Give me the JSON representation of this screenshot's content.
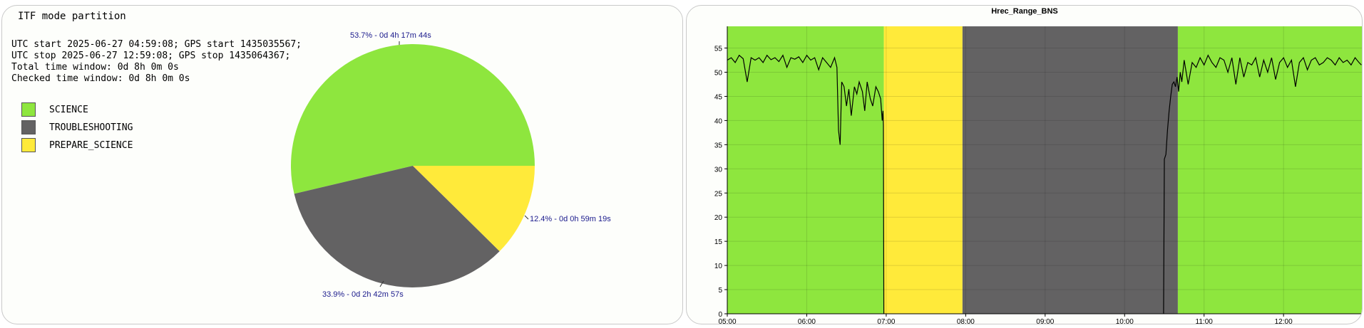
{
  "pie_panel": {
    "title": "ITF mode partition",
    "info_lines": [
      "UTC start 2025-06-27 04:59:08; GPS start 1435035567;",
      "UTC stop 2025-06-27 12:59:08; GPS stop 1435064367;",
      "Total time window: 0d 8h 0m 0s",
      "Checked time window: 0d 8h 0m 0s"
    ]
  },
  "chart_data": [
    {
      "type": "pie",
      "title": "ITF mode partition",
      "legend_placement": "left",
      "slices": [
        {
          "name": "SCIENCE",
          "value": 53.7,
          "label": "53.7% - 0d 4h 17m 44s",
          "color": "#8ee63e"
        },
        {
          "name": "TROUBLESHOOTING",
          "value": 33.9,
          "label": "33.9% - 0d 2h 42m 57s",
          "color": "#636263"
        },
        {
          "name": "PREPARE_SCIENCE",
          "value": 12.4,
          "label": "12.4% - 0d 0h 59m 19s",
          "color": "#ffea3a"
        }
      ]
    },
    {
      "type": "line",
      "title": "Hrec_Range_BNS",
      "xlabel": "",
      "ylabel": "",
      "x_unit": "hour (UTC)",
      "xlim": [
        5.0,
        12.9856
      ],
      "ylim": [
        0,
        59.5
      ],
      "x_tick_values": [
        5,
        6,
        7,
        8,
        9,
        10,
        11,
        12
      ],
      "x_tick_labels": [
        "05:00",
        "06:00",
        "07:00",
        "08:00",
        "09:00",
        "10:00",
        "11:00",
        "12:00"
      ],
      "y_ticks": [
        0,
        5,
        10,
        15,
        20,
        25,
        30,
        35,
        40,
        45,
        50,
        55
      ],
      "grid": true,
      "background_bands": [
        {
          "mode": "SCIENCE",
          "x0": 5.0,
          "x1": 6.97,
          "color": "#8ee63e"
        },
        {
          "mode": "PREPARE_SCIENCE",
          "x0": 6.97,
          "x1": 7.96,
          "color": "#ffea3a"
        },
        {
          "mode": "TROUBLESHOOTING",
          "x0": 7.96,
          "x1": 10.67,
          "color": "#636263"
        },
        {
          "mode": "SCIENCE",
          "x0": 10.67,
          "x1": 12.9856,
          "color": "#8ee63e"
        }
      ],
      "series": [
        {
          "color": "#000000",
          "x": [
            5.0,
            5.05,
            5.1,
            5.15,
            5.2,
            5.25,
            5.3,
            5.35,
            5.4,
            5.45,
            5.5,
            5.55,
            5.6,
            5.65,
            5.7,
            5.75,
            5.8,
            5.85,
            5.9,
            5.95,
            6.0,
            6.05,
            6.1,
            6.15,
            6.2,
            6.25,
            6.3,
            6.35,
            6.38,
            6.4,
            6.42,
            6.44,
            6.47,
            6.5,
            6.53,
            6.56,
            6.6,
            6.63,
            6.66,
            6.7,
            6.73,
            6.76,
            6.8,
            6.83,
            6.87,
            6.9,
            6.93,
            6.95,
            6.96,
            6.965,
            6.97
          ],
          "values": [
            52.5,
            53,
            52,
            53.5,
            52.8,
            48,
            53,
            52.5,
            53,
            52,
            53.5,
            52.6,
            53,
            52.2,
            53.5,
            51,
            53,
            52.7,
            53.2,
            52,
            53.5,
            52.5,
            53,
            50.5,
            53,
            52,
            51,
            53,
            51,
            38,
            35,
            48,
            47,
            43,
            46.5,
            41,
            47,
            45.5,
            48,
            46,
            42,
            48,
            44.5,
            43,
            47,
            46,
            44.5,
            40,
            42,
            39,
            0
          ]
        },
        {
          "color": "#000000",
          "x": [
            10.49,
            10.5,
            10.51,
            10.52,
            10.54,
            10.56,
            10.58,
            10.6,
            10.62,
            10.64,
            10.66,
            10.68,
            10.7,
            10.72,
            10.75,
            10.8,
            10.85,
            10.9,
            10.95,
            11.0,
            11.05,
            11.1,
            11.15,
            11.2,
            11.25,
            11.3,
            11.35,
            11.4,
            11.45,
            11.5,
            11.55,
            11.6,
            11.65,
            11.7,
            11.75,
            11.8,
            11.85,
            11.9,
            11.95,
            12.0,
            12.05,
            12.1,
            12.15,
            12.2,
            12.25,
            12.3,
            12.35,
            12.4,
            12.45,
            12.5,
            12.55,
            12.6,
            12.65,
            12.7,
            12.75,
            12.8,
            12.85,
            12.9,
            12.95,
            12.98
          ],
          "values": [
            0,
            32,
            32.5,
            33,
            38,
            42,
            45,
            47.5,
            48,
            47,
            49,
            46,
            50,
            48,
            52.5,
            47.5,
            52,
            51,
            53,
            51.5,
            53.5,
            52,
            51,
            53,
            52.5,
            50,
            53,
            47.5,
            53,
            49,
            52,
            51.5,
            53,
            49,
            52.5,
            50,
            53,
            48.5,
            52,
            53,
            51,
            52.5,
            47,
            52,
            53,
            50.5,
            52.5,
            53,
            51.5,
            52,
            53,
            52.5,
            51.5,
            53,
            52,
            52.5,
            51.5,
            53,
            52,
            51.5
          ]
        }
      ]
    }
  ]
}
